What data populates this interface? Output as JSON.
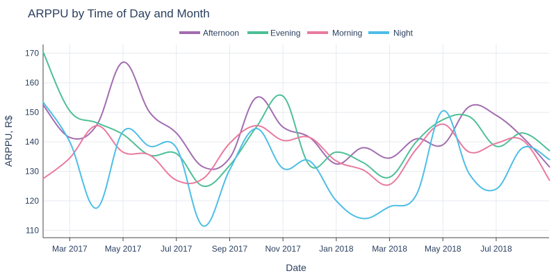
{
  "chart_data": {
    "type": "line",
    "title": "ARPPU by Time of Day and Month",
    "xlabel": "Date",
    "ylabel": "ARPPU, R$",
    "ylim": [
      107.5,
      173
    ],
    "y_ticks": [
      110,
      120,
      130,
      140,
      150,
      160,
      170
    ],
    "x_ticks": [
      "Mar 2017",
      "May 2017",
      "Jul 2017",
      "Sep 2017",
      "Nov 2017",
      "Jan 2018",
      "Mar 2018",
      "May 2018",
      "Jul 2018"
    ],
    "x": [
      "Feb 2017",
      "Mar 2017",
      "Apr 2017",
      "May 2017",
      "Jun 2017",
      "Jul 2017",
      "Aug 2017",
      "Sep 2017",
      "Oct 2017",
      "Nov 2017",
      "Dec 2017",
      "Jan 2018",
      "Feb 2018",
      "Mar 2018",
      "Apr 2018",
      "May 2018",
      "Jun 2018",
      "Jul 2018",
      "Aug 2018",
      "Sep 2018"
    ],
    "legend": {
      "position": "top-center"
    },
    "series": [
      {
        "name": "Afternoon",
        "color": "#a26cb0",
        "values": [
          152.5,
          141.5,
          145.5,
          167,
          150,
          143,
          131.5,
          134.5,
          155,
          145,
          141.5,
          132.5,
          138,
          134.5,
          141,
          139,
          152,
          149,
          141.5,
          131.5
        ]
      },
      {
        "name": "Evening",
        "color": "#4dbf95",
        "values": [
          170.5,
          150.5,
          146.5,
          142.5,
          135.5,
          136,
          125,
          132,
          145,
          155.5,
          132,
          136.5,
          133,
          128,
          140,
          147.5,
          148.5,
          138.5,
          143,
          137
        ]
      },
      {
        "name": "Morning",
        "color": "#e97a9e",
        "values": [
          127.5,
          134.5,
          145.5,
          136.5,
          135.5,
          127,
          127.5,
          139.5,
          145.5,
          140.5,
          141.5,
          133.5,
          130.5,
          125.5,
          137.5,
          146,
          136.5,
          139.5,
          140.5,
          127
        ]
      },
      {
        "name": "Night",
        "color": "#4dbee6",
        "values": [
          153.5,
          140,
          117.5,
          143.5,
          138.5,
          138,
          111.5,
          130.5,
          144.5,
          131,
          133.5,
          120,
          114,
          118,
          122,
          150.5,
          129,
          124,
          138,
          134
        ]
      }
    ]
  }
}
